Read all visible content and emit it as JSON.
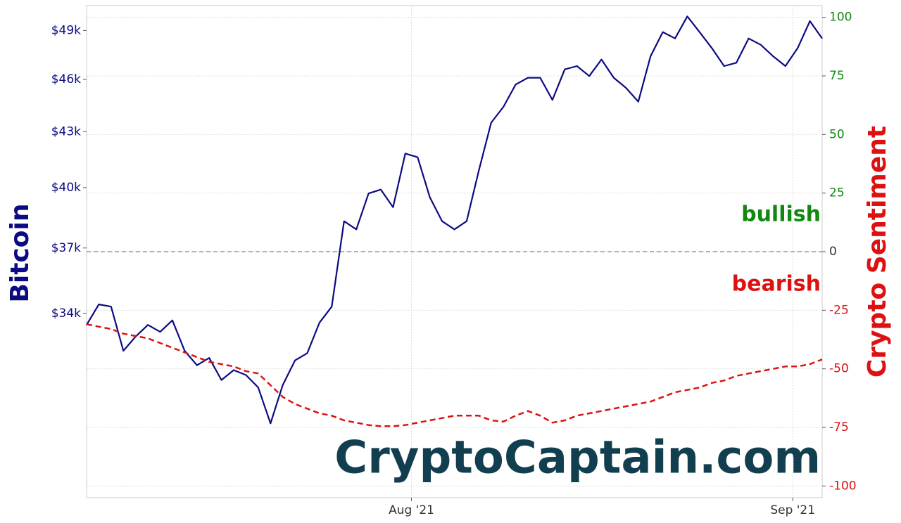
{
  "chart_data": {
    "type": "line",
    "ylabel": "Bitcoin",
    "y2label": "Crypto Sentiment",
    "annotations": [
      "bullish",
      "bearish",
      "CryptoCaptain.com"
    ],
    "x": [
      0,
      1,
      2,
      3,
      4,
      5,
      6,
      7,
      8,
      9,
      10,
      11,
      12,
      13,
      14,
      15,
      16,
      17,
      18,
      19,
      20,
      21,
      22,
      23,
      24,
      25,
      26,
      27,
      28,
      29,
      30,
      31,
      32,
      33,
      34,
      35,
      36,
      37,
      38,
      39,
      40,
      41,
      42,
      43,
      44,
      45,
      46,
      47,
      48,
      49,
      50,
      51,
      52,
      53,
      54,
      55,
      56,
      57,
      58,
      59,
      60
    ],
    "xlim": [
      0,
      60
    ],
    "xticks": [
      {
        "value": 26.5,
        "label": "Aug '21"
      },
      {
        "value": 57.6,
        "label": "Sep '21"
      }
    ],
    "ylog": true,
    "ylim": [
      26800,
      50600
    ],
    "yticks": [
      {
        "value": 34000,
        "label": "$34k"
      },
      {
        "value": 37000,
        "label": "$37k"
      },
      {
        "value": 40000,
        "label": "$40k"
      },
      {
        "value": 43000,
        "label": "$43k"
      },
      {
        "value": 46000,
        "label": "$46k"
      },
      {
        "value": 49000,
        "label": "$49k"
      }
    ],
    "y2lim": [
      -105,
      105
    ],
    "y2ticks": [
      -100,
      -75,
      -50,
      -25,
      0,
      25,
      50,
      75,
      100
    ],
    "y2_reference": 0,
    "positive_color": "#118811",
    "negative_color": "#dd1111",
    "grid": true,
    "series": [
      {
        "name": "Bitcoin",
        "color": "#0b0b82",
        "values": [
          33500,
          34400,
          34300,
          32400,
          33000,
          33500,
          33200,
          33700,
          32400,
          31800,
          32100,
          31200,
          31600,
          31400,
          30900,
          29500,
          31000,
          32000,
          32300,
          33600,
          34300,
          38300,
          37900,
          39700,
          39900,
          39000,
          41800,
          41600,
          39500,
          38300,
          37900,
          38300,
          40900,
          43500,
          44400,
          45700,
          46100,
          46100,
          44800,
          46600,
          46800,
          46200,
          47200,
          46100,
          45500,
          44700,
          47400,
          48900,
          48500,
          49900,
          48900,
          47900,
          46800,
          47000,
          48500,
          48100,
          47400,
          46800,
          47900,
          49600,
          48500
        ]
      },
      {
        "name": "Crypto Sentiment",
        "color": "#dd1111",
        "axis": "y2",
        "dashed": true,
        "values": [
          -31,
          -32,
          -33,
          -35,
          -36,
          -37,
          -39,
          -41,
          -43,
          -45,
          -47,
          -48,
          -49,
          -51,
          -52,
          -57,
          -62,
          -65,
          -67,
          -69,
          -70,
          -72,
          -73,
          -74,
          -74.5,
          -74.5,
          -74,
          -73,
          -72,
          -71,
          -70,
          -70,
          -70,
          -72,
          -72.5,
          -70,
          -68,
          -70,
          -73,
          -72,
          -70,
          -69,
          -68,
          -67,
          -66,
          -65,
          -64,
          -62,
          -60,
          -59,
          -58,
          -56,
          -55,
          -53,
          -52,
          -51,
          -50,
          -49,
          -49,
          -48,
          -46
        ]
      }
    ]
  }
}
